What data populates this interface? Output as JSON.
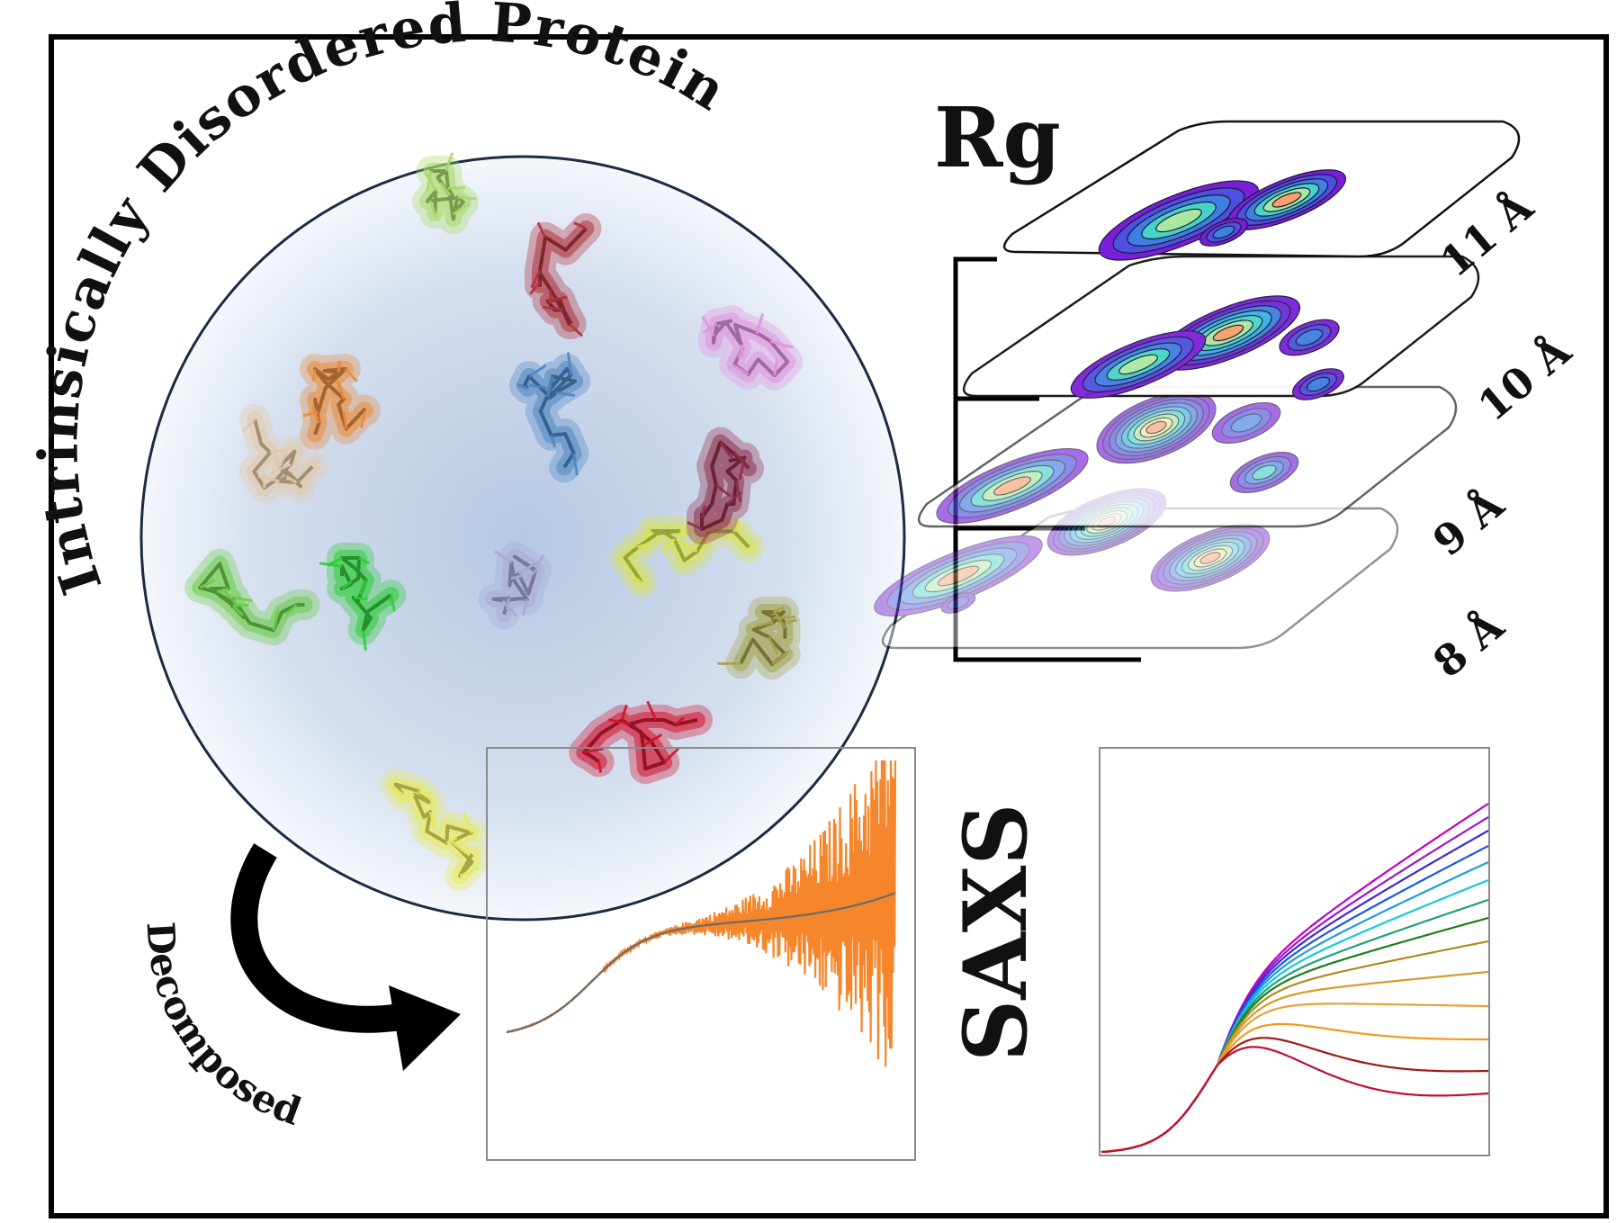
{
  "title_arc": "Intrinsically Disordered Protein",
  "decomposed_label": "Decomposed",
  "rg": {
    "label": "Rg",
    "levels": [
      "11 Å",
      "10 Å",
      "9 Å",
      "8 Å"
    ]
  },
  "saxs_label": "SAXS",
  "colors": {
    "frame": "#000000",
    "circle_edge": "#1c2a44",
    "circle_fill": "#c9d6ea",
    "orange_curve": "#f5862b",
    "fit_curve": "#6b6b6b"
  },
  "proteins": [
    {
      "name": "tan",
      "color": "#e3c8a6"
    },
    {
      "name": "lime-green",
      "color": "#a8d96a"
    },
    {
      "name": "dark-red",
      "color": "#b0323c"
    },
    {
      "name": "orange",
      "color": "#e98a3a"
    },
    {
      "name": "blue",
      "color": "#4f86c2"
    },
    {
      "name": "pink",
      "color": "#df94df"
    },
    {
      "name": "green",
      "color": "#6ccc4a"
    },
    {
      "name": "bright-green",
      "color": "#2fcc38"
    },
    {
      "name": "lavender",
      "color": "#a9a9d6"
    },
    {
      "name": "yellow",
      "color": "#d9e44a"
    },
    {
      "name": "maroon",
      "color": "#8e2e4c"
    },
    {
      "name": "olive",
      "color": "#a4a24a"
    },
    {
      "name": "pale-yellow",
      "color": "#e8ea5a"
    },
    {
      "name": "red",
      "color": "#d1142f"
    }
  ],
  "saxs_series_colors": [
    "#c400c4",
    "#9a16c8",
    "#3c2ad1",
    "#1a56e8",
    "#1c9ee0",
    "#14c9d6",
    "#1ea07a",
    "#1b7d1b",
    "#b08a20",
    "#d59a2b",
    "#e7a03a",
    "#f09a1a",
    "#a01818",
    "#c01030"
  ]
}
